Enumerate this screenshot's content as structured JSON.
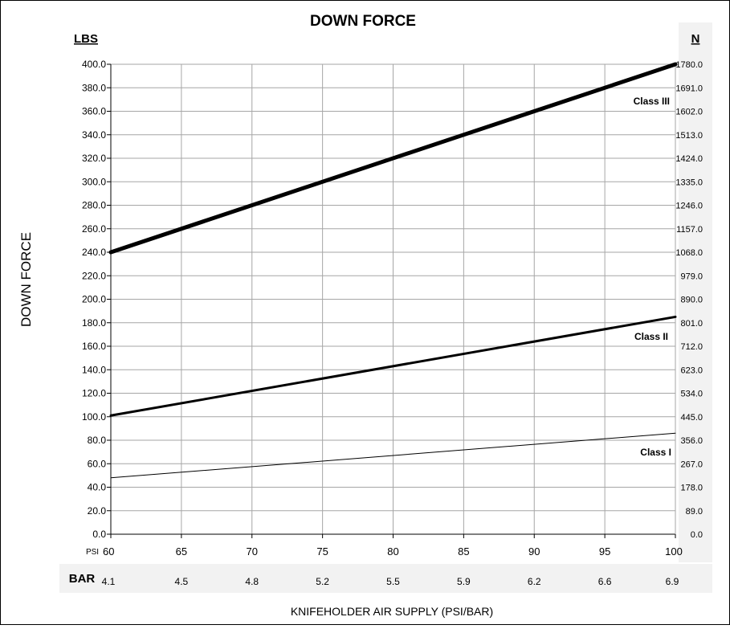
{
  "chart_data": {
    "type": "line",
    "title": "DOWN FORCE",
    "ylabel": "DOWN FORCE",
    "xlabel": "KNIFEHOLDER AIR SUPPLY (PSI/BAR)",
    "left_unit": "LBS",
    "right_unit": "N",
    "x_unit_label": "PSI",
    "bar_row_label": "BAR",
    "x": [
      60,
      65,
      70,
      75,
      80,
      85,
      90,
      95,
      100
    ],
    "x_tick_labels": [
      "60",
      "65",
      "70",
      "75",
      "80",
      "85",
      "90",
      "95",
      "100"
    ],
    "bar_tick_labels": [
      "4.1",
      "4.5",
      "4.8",
      "5.2",
      "5.5",
      "5.9",
      "6.2",
      "6.6",
      "6.9"
    ],
    "xlim": [
      60,
      100
    ],
    "ylim": [
      0,
      400
    ],
    "y_tick_labels": [
      "0.0",
      "20.0",
      "40.0",
      "60.0",
      "80.0",
      "100.0",
      "120.0",
      "140.0",
      "160.0",
      "180.0",
      "200.0",
      "220.0",
      "240.0",
      "260.0",
      "280.0",
      "300.0",
      "320.0",
      "340.0",
      "360.0",
      "380.0",
      "400.0"
    ],
    "right_tick_labels": [
      "0.0",
      "89.0",
      "178.0",
      "267.0",
      "356.0",
      "445.0",
      "534.0",
      "623.0",
      "712.0",
      "801.0",
      "890.0",
      "979.0",
      "1068.0",
      "1157.0",
      "1246.0",
      "1335.0",
      "1424.0",
      "1513.0",
      "1602.0",
      "1691.0",
      "1780.0"
    ],
    "grid": true,
    "series": [
      {
        "name": "Class III",
        "x": [
          60,
          100
        ],
        "values": [
          240,
          400
        ]
      },
      {
        "name": "Class II",
        "x": [
          60,
          100
        ],
        "values": [
          101,
          185
        ]
      },
      {
        "name": "Class I",
        "x": [
          60,
          100
        ],
        "values": [
          48,
          86
        ]
      }
    ]
  },
  "colors": {
    "line": "#000000",
    "grid": "#a6a6a6",
    "panel": "#f2f2f2",
    "frame": "#000000"
  }
}
